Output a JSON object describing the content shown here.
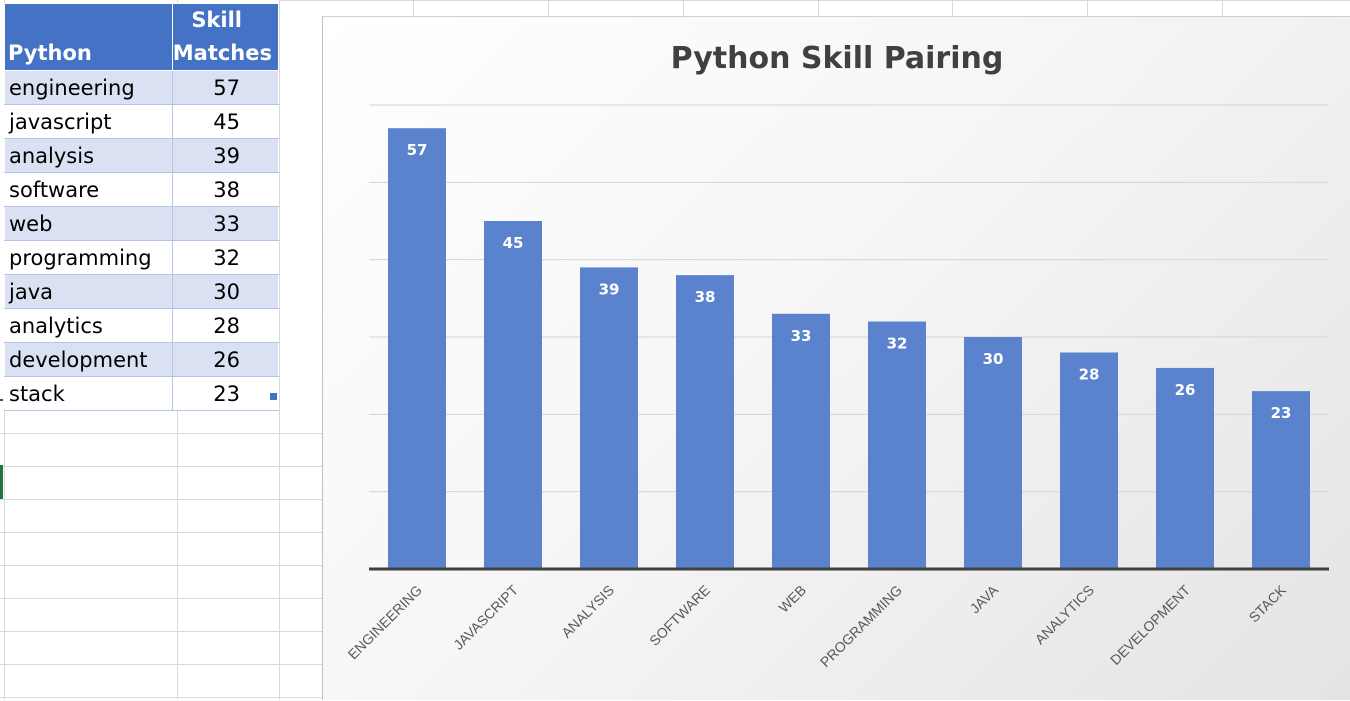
{
  "table": {
    "headers": {
      "col1": "Python",
      "col2_line1": "Skill",
      "col2_line2": "Matches"
    },
    "rows": [
      {
        "skill": "engineering",
        "matches": "57"
      },
      {
        "skill": "javascript",
        "matches": "45"
      },
      {
        "skill": "analysis",
        "matches": "39"
      },
      {
        "skill": "software",
        "matches": "38"
      },
      {
        "skill": "web",
        "matches": "33"
      },
      {
        "skill": "programming",
        "matches": "32"
      },
      {
        "skill": "java",
        "matches": "30"
      },
      {
        "skill": "analytics",
        "matches": "28"
      },
      {
        "skill": "development",
        "matches": "26"
      },
      {
        "skill": "stack",
        "matches": "23"
      }
    ]
  },
  "colors": {
    "header_fill": "#4472c4",
    "band_fill": "#d9e1f2",
    "bar_fill": "#5b82cc",
    "bar_label": "#ffffff",
    "title": "#404040",
    "axis_label": "#595959"
  },
  "chart_data": {
    "type": "bar",
    "title": "Python Skill Pairing",
    "categories": [
      "ENGINEERING",
      "JAVASCRIPT",
      "ANALYSIS",
      "SOFTWARE",
      "WEB",
      "PROGRAMMING",
      "JAVA",
      "ANALYTICS",
      "DEVELOPMENT",
      "STACK"
    ],
    "values": [
      57,
      45,
      39,
      38,
      33,
      32,
      30,
      28,
      26,
      23
    ],
    "data_labels": [
      "57",
      "45",
      "39",
      "38",
      "33",
      "32",
      "30",
      "28",
      "26",
      "23"
    ],
    "xlabel": "",
    "ylabel": "",
    "ylim": [
      0,
      60
    ],
    "gridlines": [
      10,
      20,
      30,
      40,
      50,
      60
    ],
    "grid": true,
    "legend": "none",
    "y_tick_labels_shown": false
  }
}
